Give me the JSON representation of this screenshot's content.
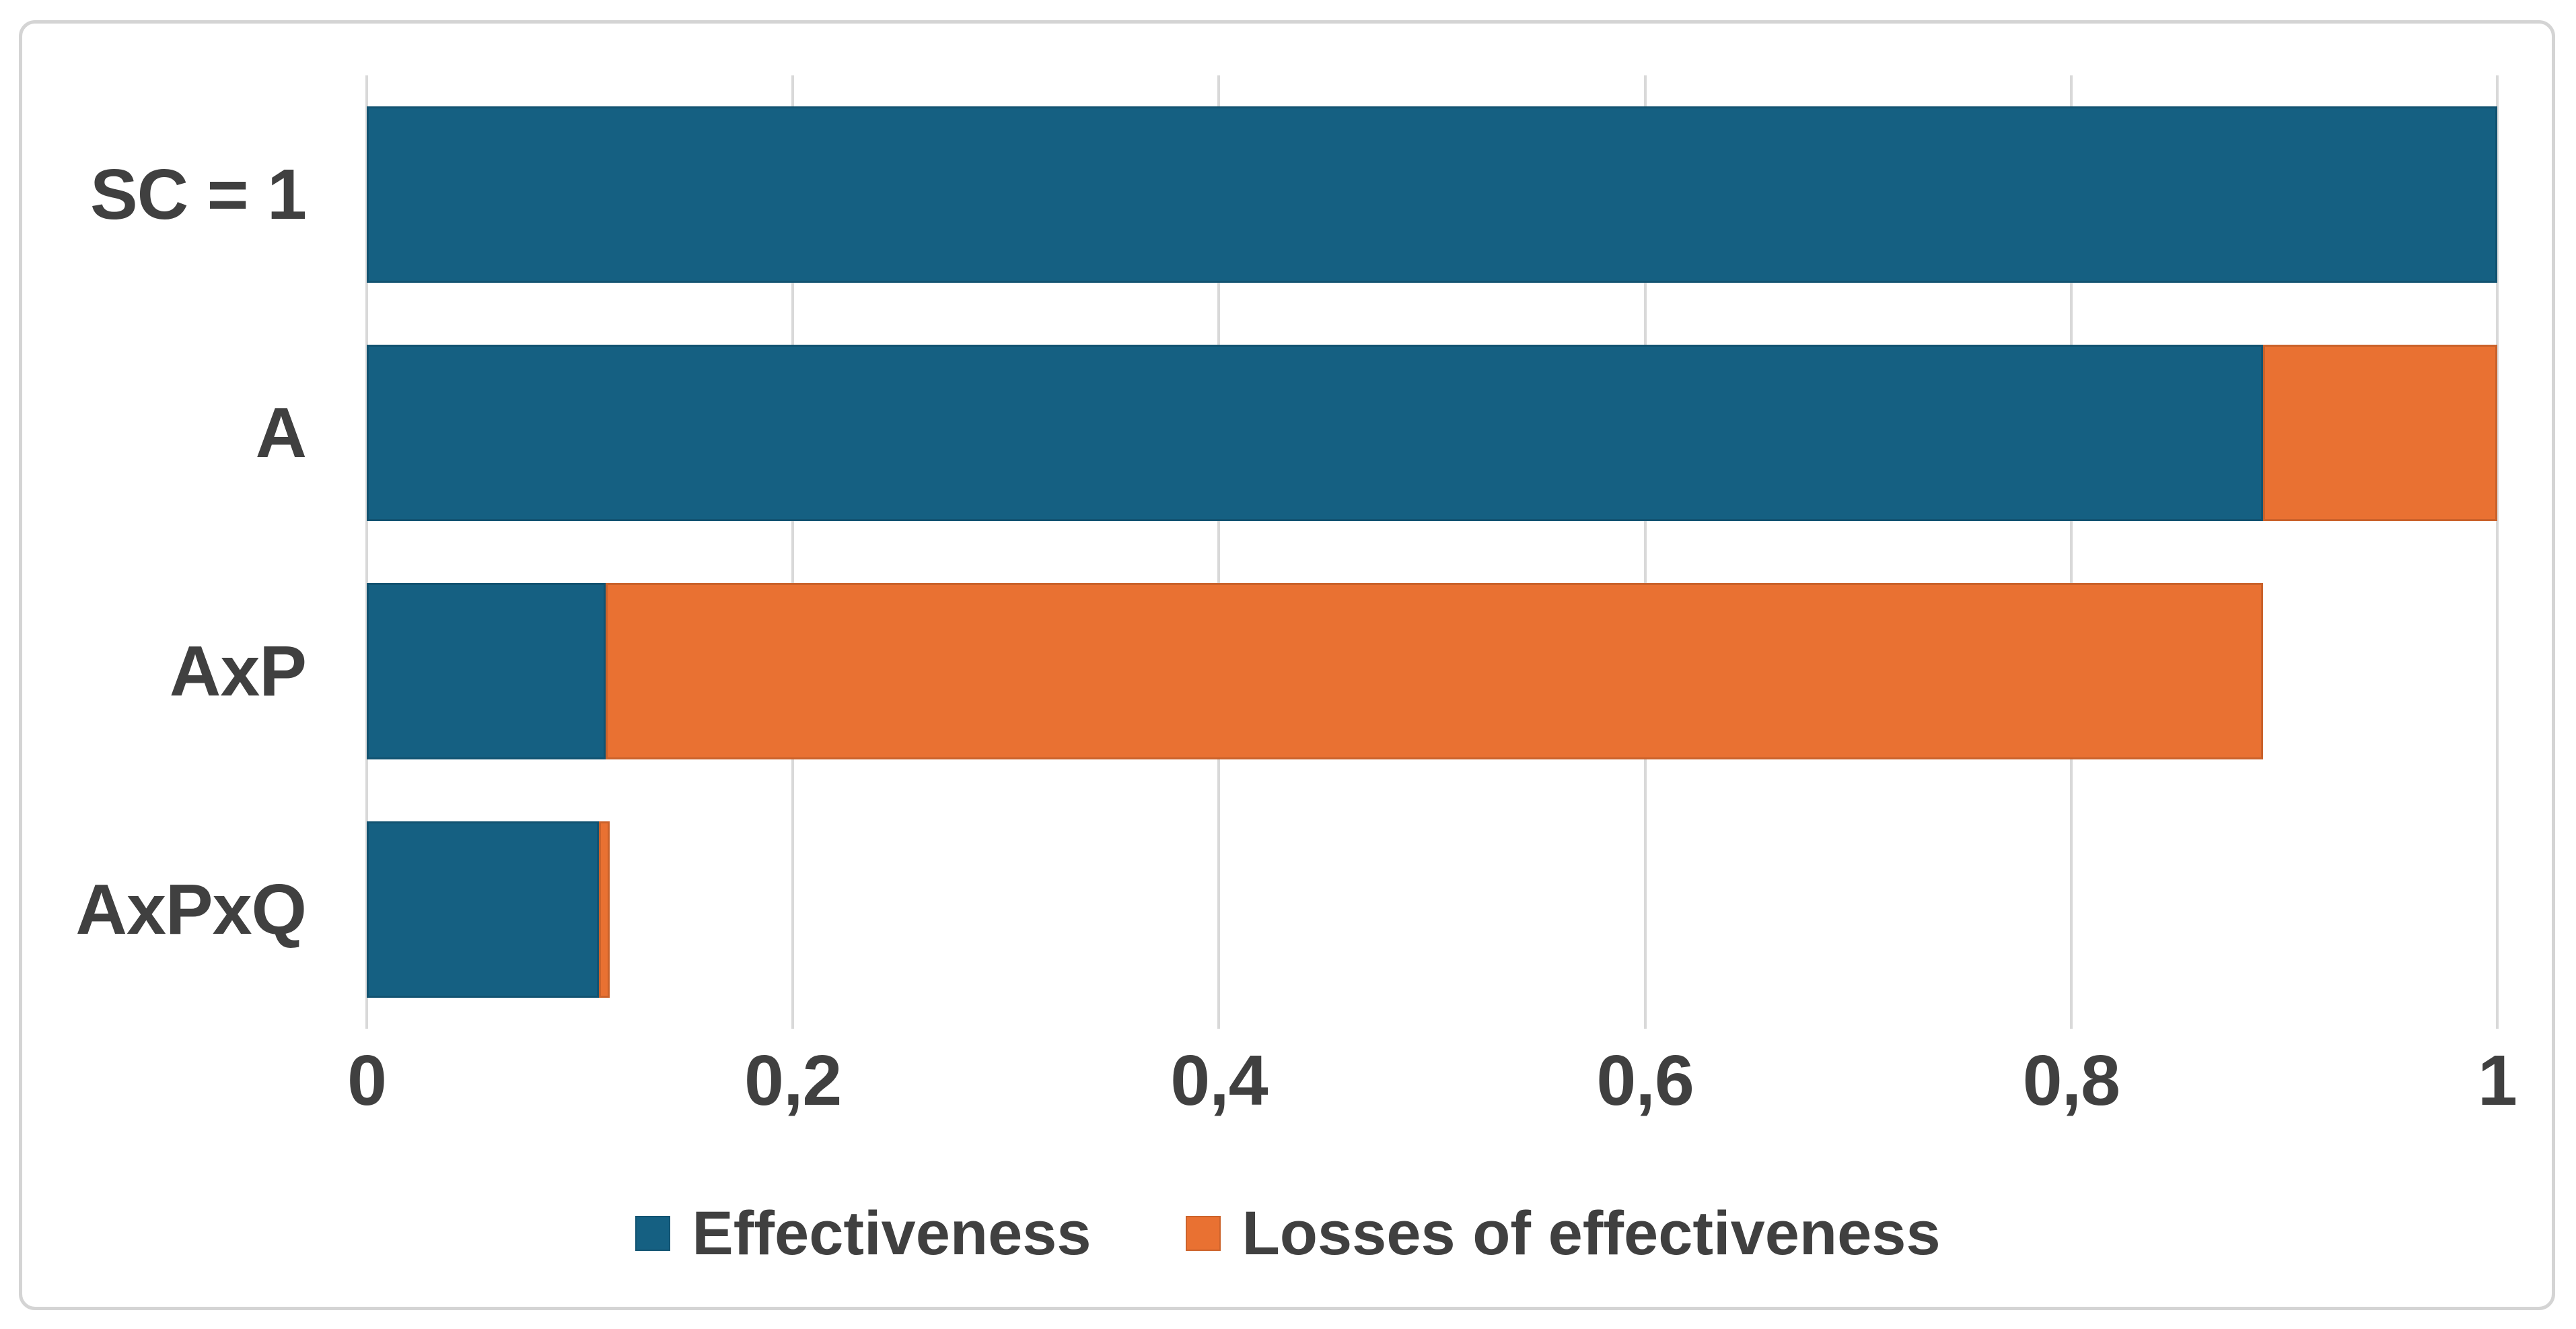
{
  "chart_data": {
    "type": "bar",
    "orientation": "horizontal",
    "stacked": true,
    "title": "",
    "categories": [
      "SC = 1",
      "A",
      "AxP",
      "AxPxQ"
    ],
    "series": [
      {
        "name": "Effectiveness",
        "color": "#156082",
        "values": [
          1,
          0.89,
          0.112,
          0.109
        ]
      },
      {
        "name": "Losses of effectiveness",
        "color": "#E97132",
        "values": [
          0,
          0.11,
          0.778,
          0.005
        ]
      }
    ],
    "x_axis": {
      "min": 0,
      "max": 1,
      "tick_values": [
        0,
        0.2,
        0.4,
        0.6,
        0.8,
        1
      ],
      "tick_labels": [
        "0",
        "0,2",
        "0,4",
        "0,6",
        "0,8",
        "1"
      ],
      "decimal_separator": ","
    },
    "legend": {
      "position": "bottom",
      "entries": [
        "Effectiveness",
        "Losses of effectiveness"
      ]
    },
    "gridlines": "vertical"
  },
  "colors": {
    "effectiveness": "#156082",
    "losses_of_effectiveness": "#E97132",
    "text": "#404040",
    "gridline": "#D9D9D9",
    "frame_border": "#D4D4D4",
    "background": "#FFFFFF"
  }
}
